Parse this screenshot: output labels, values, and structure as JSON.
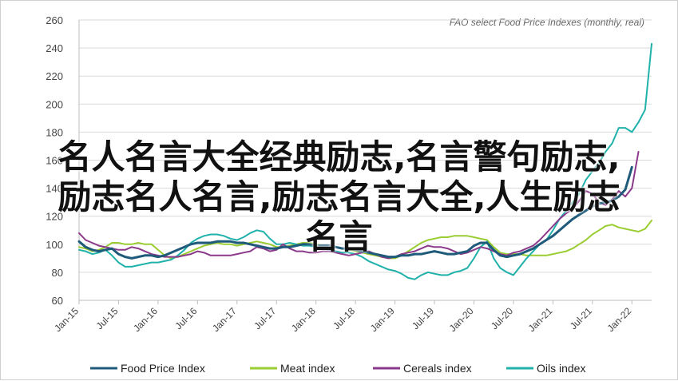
{
  "chart_data": {
    "type": "line",
    "title": "",
    "subtitle": "FAO select Food Price Indexes (monthly, real)",
    "xlabel": "",
    "ylabel": "",
    "ylim": [
      60,
      260
    ],
    "yticks": [
      60,
      80,
      100,
      120,
      140,
      160,
      180,
      200,
      220,
      240,
      260
    ],
    "x_start": "2015-01",
    "xticks": [
      "Jan-15",
      "Jul-15",
      "Jan-16",
      "Jul-16",
      "Jan-17",
      "Jul-17",
      "Jan-18",
      "Jul-18",
      "Jan-19",
      "Jul-19",
      "Jan-20",
      "Jul-20",
      "Jan-21",
      "Jul-21",
      "Jan-22"
    ],
    "grid": "horizontal",
    "legend_position": "bottom",
    "series": [
      {
        "name": "Food Price Index",
        "color": "#1f5a7a",
        "width": 3,
        "values": [
          102,
          98,
          96,
          95,
          96,
          97,
          93,
          91,
          90,
          91,
          92,
          92,
          91,
          92,
          94,
          96,
          98,
          100,
          101,
          101,
          101,
          102,
          102,
          102,
          101,
          101,
          100,
          99,
          98,
          97,
          97,
          98,
          98,
          99,
          100,
          100,
          99,
          99,
          99,
          98,
          97,
          97,
          96,
          95,
          94,
          93,
          92,
          91,
          91,
          92,
          92,
          93,
          93,
          94,
          95,
          94,
          93,
          93,
          94,
          95,
          99,
          101,
          101,
          96,
          92,
          91,
          92,
          93,
          95,
          97,
          100,
          103,
          106,
          110,
          114,
          118,
          121,
          124,
          127,
          129,
          130,
          131,
          134,
          139,
          155
        ]
      },
      {
        "name": "Meat index",
        "color": "#9acd32",
        "width": 2,
        "values": [
          98,
          97,
          95,
          96,
          98,
          101,
          101,
          100,
          100,
          101,
          100,
          100,
          96,
          92,
          90,
          91,
          93,
          95,
          97,
          99,
          100,
          101,
          100,
          100,
          99,
          100,
          101,
          102,
          101,
          100,
          98,
          98,
          99,
          100,
          101,
          101,
          100,
          99,
          98,
          98,
          97,
          96,
          95,
          94,
          93,
          92,
          91,
          90,
          90,
          92,
          95,
          98,
          101,
          103,
          104,
          105,
          105,
          106,
          106,
          106,
          105,
          104,
          103,
          98,
          94,
          93,
          93,
          93,
          92,
          92,
          92,
          92,
          93,
          94,
          95,
          97,
          100,
          103,
          107,
          110,
          113,
          114,
          112,
          111,
          110,
          109,
          111,
          117
        ]
      },
      {
        "name": "Cereals index",
        "color": "#8b3a8b",
        "width": 2,
        "values": [
          108,
          103,
          101,
          99,
          98,
          97,
          96,
          96,
          98,
          97,
          95,
          93,
          92,
          91,
          91,
          91,
          92,
          93,
          95,
          94,
          92,
          92,
          92,
          92,
          93,
          94,
          95,
          98,
          97,
          95,
          96,
          100,
          97,
          95,
          95,
          94,
          94,
          95,
          95,
          94,
          93,
          92,
          93,
          94,
          95,
          93,
          91,
          90,
          91,
          93,
          94,
          95,
          97,
          99,
          98,
          98,
          97,
          95,
          93,
          94,
          96,
          98,
          97,
          95,
          93,
          92,
          94,
          95,
          97,
          99,
          103,
          108,
          113,
          118,
          122,
          125,
          131,
          138,
          136,
          130,
          128,
          132,
          138,
          134,
          140,
          166
        ]
      },
      {
        "name": "Oils index",
        "color": "#20b2aa",
        "width": 2,
        "values": [
          96,
          95,
          93,
          94,
          96,
          92,
          87,
          84,
          84,
          85,
          86,
          87,
          87,
          88,
          89,
          92,
          96,
          101,
          104,
          106,
          107,
          107,
          106,
          104,
          103,
          105,
          108,
          110,
          109,
          104,
          100,
          100,
          101,
          100,
          99,
          99,
          98,
          97,
          96,
          95,
          94,
          94,
          93,
          91,
          88,
          86,
          84,
          82,
          81,
          79,
          76,
          75,
          78,
          80,
          79,
          78,
          78,
          80,
          81,
          83,
          90,
          98,
          102,
          90,
          83,
          80,
          78,
          84,
          90,
          95,
          100,
          103,
          110,
          118,
          124,
          130,
          136,
          146,
          152,
          158,
          166,
          172,
          183,
          183,
          180,
          187,
          196,
          243
        ]
      }
    ]
  },
  "overlay": {
    "line1": "名人名言大全经典励志,名言警句励志,",
    "line2": "励志名人名言,励志名言大全,人生励志",
    "line3": "名言"
  }
}
